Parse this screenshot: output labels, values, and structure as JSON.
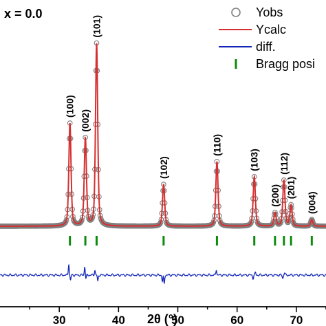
{
  "chart_data": {
    "type": "line",
    "panel_label": "x = 0.0",
    "xlabel": "2θ (°)",
    "xlim": [
      20,
      75
    ],
    "x_ticks": [
      30,
      40,
      50,
      60,
      70
    ],
    "tick_labels": [
      "30",
      "40",
      "50",
      "60",
      "70"
    ],
    "legend_position": "top-right",
    "colors": {
      "yobs": "#7f7f7f",
      "ycalc": "#d62f2f",
      "diff": "#1226b8",
      "bragg": "#0d8a0d"
    },
    "legend": [
      {
        "key": "yobs",
        "label": "Yobs",
        "symbol": "circle"
      },
      {
        "key": "ycalc",
        "label": "Ycalc",
        "symbol": "line"
      },
      {
        "key": "diff",
        "label": "diff.",
        "symbol": "line"
      },
      {
        "key": "bragg",
        "label": "Bragg posi",
        "symbol": "bar"
      }
    ],
    "background_level": 0.04,
    "peaks": [
      {
        "label": "(100)",
        "x": 31.8,
        "intensity": 0.54
      },
      {
        "label": "(002)",
        "x": 34.4,
        "intensity": 0.46
      },
      {
        "label": "(101)",
        "x": 36.3,
        "intensity": 0.96
      },
      {
        "label": "(102)",
        "x": 47.6,
        "intensity": 0.22
      },
      {
        "label": "(110)",
        "x": 56.6,
        "intensity": 0.34
      },
      {
        "label": "(103)",
        "x": 62.9,
        "intensity": 0.26
      },
      {
        "label": "(200)",
        "x": 66.4,
        "intensity": 0.07
      },
      {
        "label": "(112)",
        "x": 67.9,
        "intensity": 0.24
      },
      {
        "label": "(201)",
        "x": 69.1,
        "intensity": 0.11
      },
      {
        "label": "(004)",
        "x": 72.6,
        "intensity": 0.035
      }
    ],
    "bragg_positions": [
      31.8,
      34.4,
      36.3,
      47.6,
      56.6,
      62.9,
      66.4,
      67.9,
      69.1,
      72.6
    ],
    "diff_features": [
      {
        "x": 31.6,
        "value": 0.9
      },
      {
        "x": 31.9,
        "value": -0.4
      },
      {
        "x": 34.3,
        "value": 0.7
      },
      {
        "x": 34.5,
        "value": -0.3
      },
      {
        "x": 36.0,
        "value": 0.4
      },
      {
        "x": 36.5,
        "value": -0.5
      },
      {
        "x": 47.4,
        "value": -0.5
      },
      {
        "x": 47.7,
        "value": -0.7
      },
      {
        "x": 56.5,
        "value": 0.45
      },
      {
        "x": 62.7,
        "value": -0.25
      },
      {
        "x": 63.1,
        "value": 0.2
      },
      {
        "x": 67.7,
        "value": -0.25
      },
      {
        "x": 68.0,
        "value": 0.2
      }
    ]
  }
}
